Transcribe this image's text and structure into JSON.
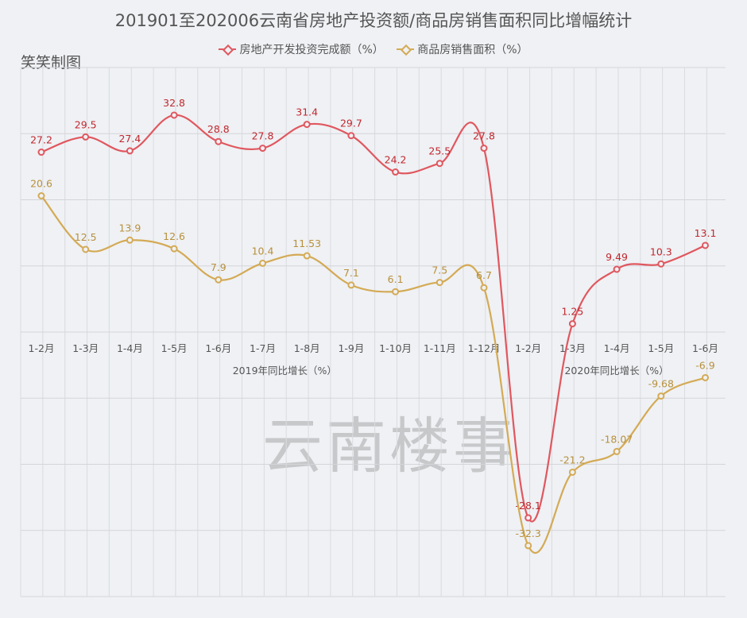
{
  "chart_data": {
    "type": "line",
    "title": "201901至202006云南省房地产投资额/商品房销售面积同比增幅统计",
    "author": "笑笑制图",
    "watermark": "云南楼事",
    "categories": [
      "1-2月",
      "1-3月",
      "1-4月",
      "1-5月",
      "1-6月",
      "1-7月",
      "1-8月",
      "1-9月",
      "1-10月",
      "1-11月",
      "1-12月",
      "1-2月",
      "1-3月",
      "1-4月",
      "1-5月",
      "1-6月"
    ],
    "group_labels": [
      "2019年同比增长（%）",
      "2020年同比增长（%）"
    ],
    "ylim": [
      -40,
      40
    ],
    "y_gridlines": [
      40,
      30,
      20,
      10,
      0,
      -10,
      -20,
      -30,
      -40
    ],
    "grid": true,
    "legend_position": "top-center",
    "series": [
      {
        "name": "房地产开发投资完成额（%）",
        "color": "#e0575f",
        "labelColor": "#c0282f",
        "values": [
          27.2,
          29.5,
          27.4,
          32.8,
          28.8,
          27.8,
          31.4,
          29.7,
          24.2,
          25.5,
          27.8,
          -28.1,
          1.25,
          9.49,
          10.3,
          13.1
        ],
        "labels": [
          "27.2",
          "29.5",
          "27.4",
          "32.8",
          "28.8",
          "27.8",
          "31.4",
          "29.7",
          "24.2",
          "25.5",
          "27.8",
          "-28.1",
          "1.25",
          "9.49",
          "10.3",
          "13.1"
        ]
      },
      {
        "name": "商品房销售面积（%）",
        "color": "#d4aa55",
        "labelColor": "#b8903c",
        "values": [
          20.6,
          12.5,
          13.9,
          12.6,
          7.9,
          10.4,
          11.53,
          7.1,
          6.1,
          7.5,
          6.7,
          -32.3,
          -21.2,
          -18.07,
          -9.68,
          -6.9
        ],
        "labels": [
          "20.6",
          "12.5",
          "13.9",
          "12.6",
          "7.9",
          "10.4",
          "11.53",
          "7.1",
          "6.1",
          "7.5",
          "6.7",
          "-32.3",
          "-21.2",
          "-18.07",
          "-9.68",
          "-6.9"
        ]
      }
    ]
  }
}
